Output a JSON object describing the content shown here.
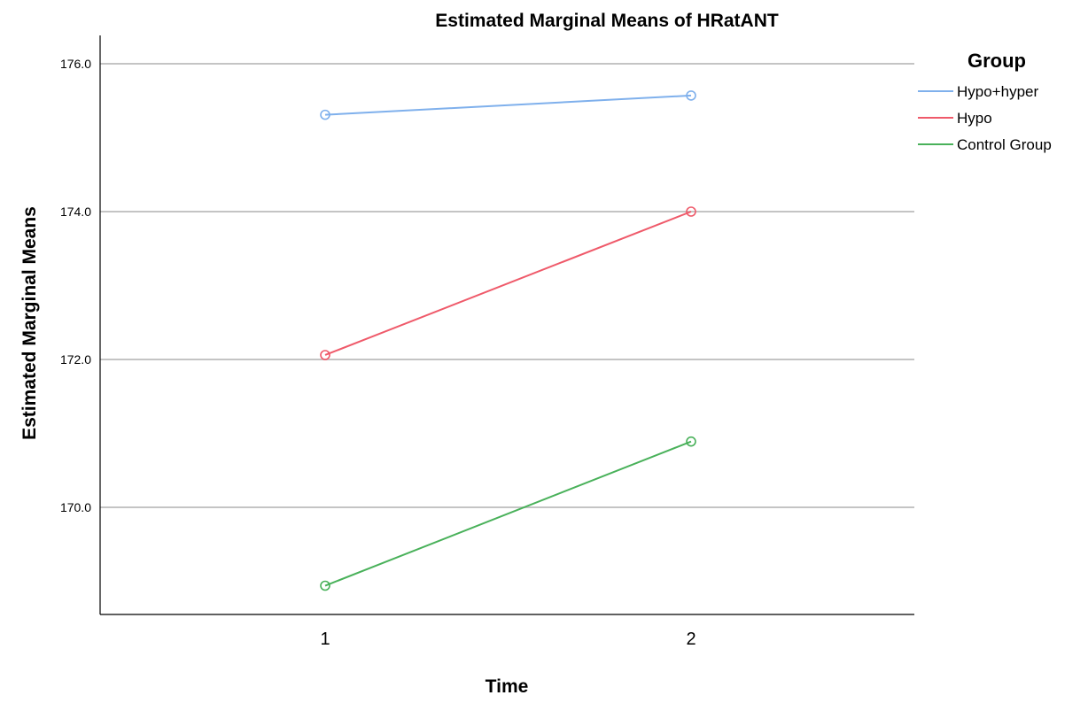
{
  "chart_data": {
    "type": "line",
    "title": "Estimated Marginal Means of HRatANT",
    "xlabel": "Time",
    "ylabel": "Estimated Marginal Means",
    "categories": [
      "1",
      "2"
    ],
    "yticks": [
      "170.0",
      "172.0",
      "174.0",
      "176.0"
    ],
    "ylim": [
      168.55,
      176.4
    ],
    "grid": "horizontal",
    "legend": {
      "title": "Group",
      "position": "top-right"
    },
    "series": [
      {
        "name": "Hypo+hyper",
        "values": [
          175.31,
          175.57
        ],
        "color": "#7fb0ec"
      },
      {
        "name": "Hypo",
        "values": [
          172.06,
          174.0
        ],
        "color": "#ef5a6a"
      },
      {
        "name": "Control Group",
        "values": [
          168.94,
          170.89
        ],
        "color": "#49b15a"
      }
    ]
  }
}
